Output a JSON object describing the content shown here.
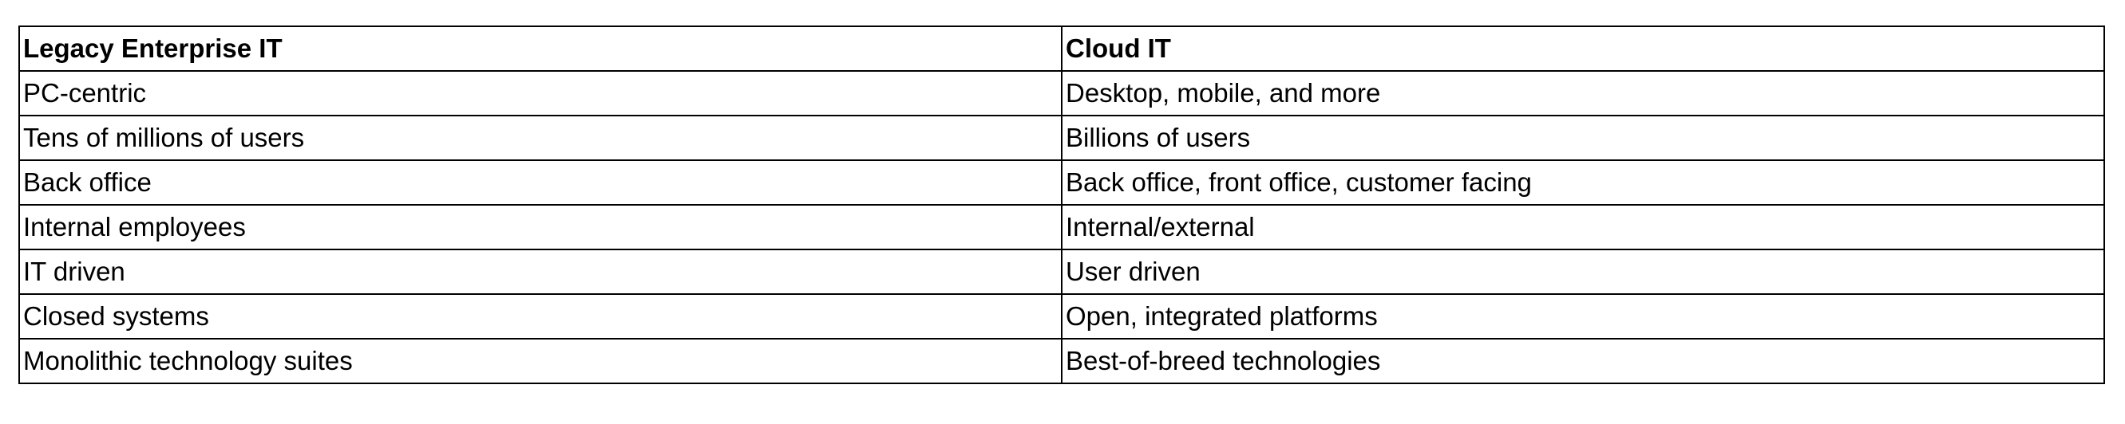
{
  "table": {
    "headers": [
      "Legacy Enterprise IT",
      "Cloud IT"
    ],
    "rows": [
      [
        "PC-centric",
        "Desktop, mobile, and more"
      ],
      [
        "Tens of millions of users",
        "Billions of users"
      ],
      [
        "Back office",
        "Back office, front office, customer facing"
      ],
      [
        "Internal employees",
        "Internal/external"
      ],
      [
        "IT driven",
        "User driven"
      ],
      [
        "Closed systems",
        "Open, integrated platforms"
      ],
      [
        "Monolithic technology suites",
        "Best-of-breed technologies"
      ]
    ]
  }
}
